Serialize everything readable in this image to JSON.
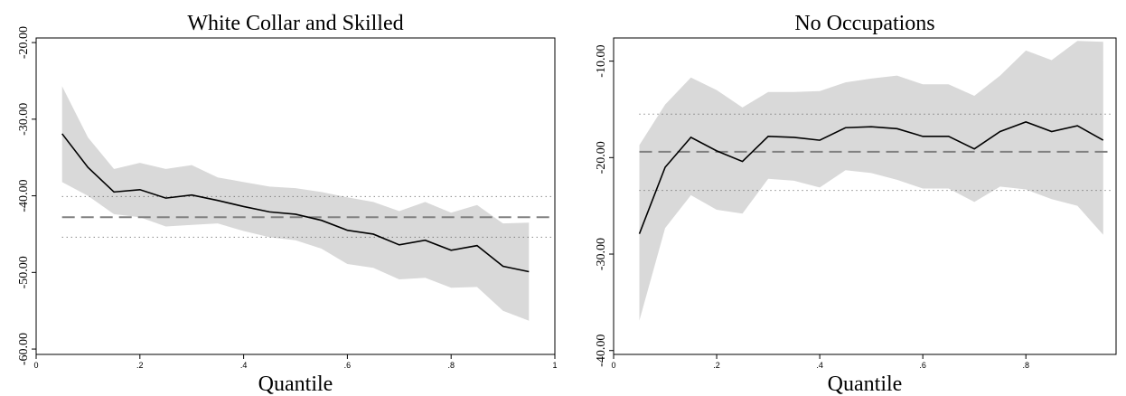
{
  "chart_data": [
    {
      "type": "line",
      "title": "White Collar and Skilled",
      "x_label": "Quantile",
      "xlim": [
        0,
        1
      ],
      "xticks": [
        0,
        {
          "value": 0.2,
          "label": ".2"
        },
        {
          "value": 0.4,
          "label": ".4"
        },
        {
          "value": 0.6,
          "label": ".6"
        },
        {
          "value": 0.8,
          "label": ".8"
        },
        1
      ],
      "ylim": [
        -60.7,
        -19.4
      ],
      "yticks": [
        {
          "value": -20,
          "label": "-20.00"
        },
        {
          "value": -30,
          "label": "-30.00"
        },
        {
          "value": -40,
          "label": "-40.00"
        },
        {
          "value": -50,
          "label": "-50.00"
        },
        {
          "value": -60,
          "label": "-60.00"
        }
      ],
      "x": [
        0.05,
        0.1,
        0.15,
        0.2,
        0.25,
        0.3,
        0.35,
        0.4,
        0.45,
        0.5,
        0.55,
        0.6,
        0.65,
        0.7,
        0.75,
        0.8,
        0.85,
        0.9,
        0.95
      ],
      "values": [
        -31.9,
        -36.3,
        -39.5,
        -39.2,
        -40.3,
        -39.9,
        -40.6,
        -41.4,
        -42.1,
        -42.4,
        -43.2,
        -44.5,
        -45.0,
        -46.4,
        -45.8,
        -47.1,
        -46.5,
        -49.2,
        -49.9
      ],
      "ci_upper": [
        -25.7,
        -32.4,
        -36.5,
        -35.7,
        -36.5,
        -36.0,
        -37.6,
        -38.2,
        -38.8,
        -39.0,
        -39.5,
        -40.2,
        -40.8,
        -42.0,
        -40.8,
        -42.2,
        -41.2,
        -43.6,
        -43.5
      ],
      "ci_lower": [
        -38.2,
        -40.0,
        -42.4,
        -42.8,
        -44.0,
        -43.8,
        -43.6,
        -44.6,
        -45.4,
        -45.8,
        -46.9,
        -48.9,
        -49.4,
        -50.9,
        -50.7,
        -52.0,
        -51.9,
        -55.0,
        -56.3
      ],
      "reference": {
        "value": -42.8,
        "ci_upper": -40.1,
        "ci_lower": -45.4
      },
      "color": "#000000",
      "band_color": "#d9d9d9",
      "reference_color": "#808080"
    },
    {
      "type": "line",
      "title": "No Occupations",
      "x_label": "Quantile",
      "xlim": [
        0,
        0.975
      ],
      "xticks": [
        0,
        {
          "value": 0.2,
          "label": ".2"
        },
        {
          "value": 0.4,
          "label": ".4"
        },
        {
          "value": 0.6,
          "label": ".6"
        },
        {
          "value": 0.8,
          "label": ".8"
        }
      ],
      "ylim": [
        -40.4,
        -7.6
      ],
      "yticks": [
        {
          "value": -10,
          "label": "-10.00"
        },
        {
          "value": -20,
          "label": "-20.00"
        },
        {
          "value": -30,
          "label": "-30.00"
        },
        {
          "value": -40,
          "label": "-40.00"
        }
      ],
      "x": [
        0.05,
        0.1,
        0.15,
        0.2,
        0.25,
        0.3,
        0.35,
        0.4,
        0.45,
        0.5,
        0.55,
        0.6,
        0.65,
        0.7,
        0.75,
        0.8,
        0.85,
        0.9,
        0.95
      ],
      "values": [
        -27.9,
        -21.0,
        -17.9,
        -19.3,
        -20.4,
        -17.8,
        -17.9,
        -18.2,
        -16.9,
        -16.8,
        -17.0,
        -17.8,
        -17.8,
        -19.1,
        -17.3,
        -16.3,
        -17.3,
        -16.7,
        -18.2
      ],
      "ci_upper": [
        -18.7,
        -14.5,
        -11.7,
        -13.0,
        -14.8,
        -13.2,
        -13.2,
        -13.1,
        -12.2,
        -11.8,
        -11.5,
        -12.4,
        -12.4,
        -13.6,
        -11.5,
        -8.9,
        -9.9,
        -7.9,
        -8.0
      ],
      "ci_lower": [
        -36.9,
        -27.3,
        -23.9,
        -25.4,
        -25.8,
        -22.2,
        -22.4,
        -23.1,
        -21.3,
        -21.6,
        -22.3,
        -23.2,
        -23.2,
        -24.6,
        -23.0,
        -23.3,
        -24.3,
        -25.0,
        -28.0
      ],
      "reference": {
        "value": -19.4,
        "ci_upper": -15.5,
        "ci_lower": -23.4
      },
      "color": "#000000",
      "band_color": "#d9d9d9",
      "reference_color": "#808080"
    }
  ]
}
